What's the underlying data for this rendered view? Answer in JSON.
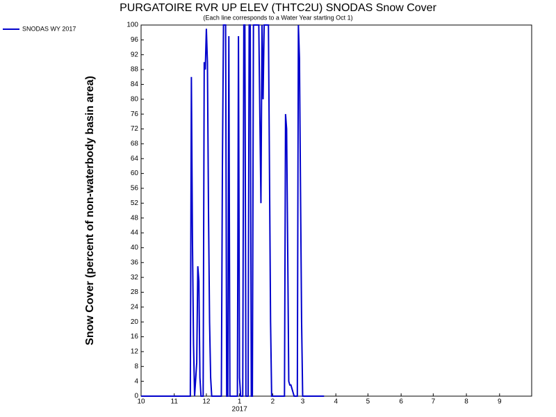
{
  "chart_data": {
    "type": "line",
    "title": "PURGATOIRE RVR UP ELEV (THTC2U) SNODAS Snow Cover",
    "subtitle": "(Each line corresponds to a Water Year starting Oct 1)",
    "y_label": "Snow Cover (percent of non-waterbody basin area)",
    "x_year_label": "2017",
    "xlim": [
      0,
      365
    ],
    "xticks": [
      {
        "value": 0,
        "label": "10"
      },
      {
        "value": 31,
        "label": "11"
      },
      {
        "value": 61,
        "label": "12"
      },
      {
        "value": 92,
        "label": "1"
      },
      {
        "value": 123,
        "label": "2"
      },
      {
        "value": 151,
        "label": "3"
      },
      {
        "value": 182,
        "label": "4"
      },
      {
        "value": 212,
        "label": "5"
      },
      {
        "value": 243,
        "label": "6"
      },
      {
        "value": 273,
        "label": "7"
      },
      {
        "value": 304,
        "label": "8"
      },
      {
        "value": 335,
        "label": "9"
      }
    ],
    "ylim": [
      0,
      100
    ],
    "yticks": [
      0,
      4,
      8,
      12,
      16,
      20,
      24,
      28,
      32,
      36,
      40,
      44,
      48,
      52,
      56,
      60,
      64,
      68,
      72,
      76,
      80,
      84,
      88,
      92,
      96,
      100
    ],
    "legend": "outside-top-left",
    "x": [
      0,
      46,
      47,
      48,
      49,
      50,
      52,
      53,
      54,
      55,
      56,
      58,
      59,
      60,
      61,
      62,
      63,
      64,
      65,
      66,
      75,
      76,
      77,
      78,
      79,
      80,
      81,
      82,
      83,
      90,
      91,
      92,
      93,
      95,
      96,
      97,
      98,
      100,
      101,
      102,
      103,
      104,
      105,
      106,
      107,
      108,
      109,
      110,
      111,
      112,
      113,
      114,
      115,
      116,
      117,
      118,
      119,
      120,
      121,
      122,
      134,
      135,
      136,
      137,
      138,
      139,
      140,
      141,
      142,
      143,
      146,
      147,
      148,
      149,
      150,
      151,
      171
    ],
    "series": [
      {
        "name": "SNODAS WY 2017",
        "color": "#0000cc",
        "values": [
          0,
          0,
          86,
          42,
          14,
          0,
          9,
          35,
          31,
          5,
          0,
          0,
          90,
          88,
          99,
          90,
          50,
          20,
          5,
          0,
          0,
          62,
          100,
          100,
          100,
          0,
          0,
          97,
          0,
          0,
          97,
          5,
          0,
          0,
          100,
          100,
          0,
          0,
          100,
          100,
          0,
          0,
          100,
          100,
          100,
          100,
          100,
          100,
          75,
          52,
          100,
          80,
          100,
          100,
          100,
          100,
          100,
          60,
          20,
          0,
          0,
          76,
          72,
          40,
          4,
          3,
          3,
          2,
          1,
          0,
          0,
          100,
          91,
          55,
          20,
          0,
          0
        ]
      }
    ]
  }
}
